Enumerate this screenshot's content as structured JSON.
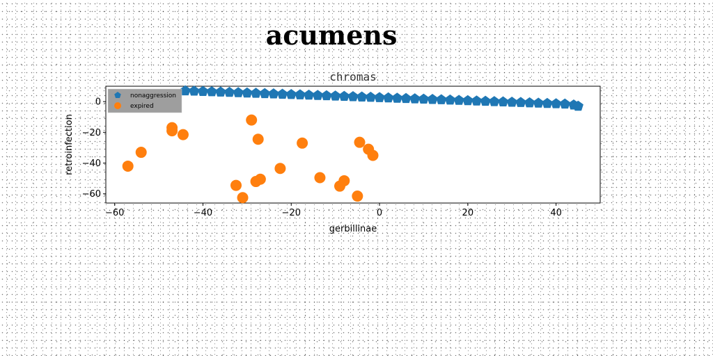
{
  "title": "acumens",
  "chart_data": {
    "type": "scatter",
    "title": "chromas",
    "xlabel": "gerbillinae",
    "ylabel": "retroinfection",
    "xlim": [
      -62,
      50
    ],
    "ylim": [
      -66,
      10
    ],
    "xticks": [
      -60,
      -40,
      -20,
      0,
      20,
      40
    ],
    "yticks": [
      0,
      -20,
      -40,
      -60
    ],
    "grid": false,
    "legend_position": "top-left",
    "series": [
      {
        "name": "nonaggression",
        "marker": "pentagon",
        "color": "#1f77b4",
        "x": [
          -44.0,
          -42.0,
          -40.0,
          -38.0,
          -36.0,
          -34.0,
          -32.0,
          -30.0,
          -28.0,
          -26.0,
          -24.0,
          -22.0,
          -20.0,
          -18.0,
          -16.0,
          -14.0,
          -12.0,
          -10.0,
          -8.0,
          -6.0,
          -4.0,
          -2.0,
          0.0,
          2.0,
          4.0,
          6.0,
          8.0,
          10.0,
          12.0,
          14.0,
          16.0,
          18.0,
          20.0,
          22.0,
          24.0,
          26.0,
          28.0,
          30.0,
          32.0,
          34.0,
          36.0,
          38.0,
          40.0,
          42.0,
          44.0,
          45.0
        ],
        "y": [
          7.0,
          6.8,
          6.6,
          6.4,
          6.2,
          6.0,
          5.8,
          5.6,
          5.4,
          5.2,
          5.0,
          4.8,
          4.6,
          4.4,
          4.2,
          4.0,
          3.8,
          3.6,
          3.4,
          3.2,
          3.0,
          2.8,
          2.6,
          2.4,
          2.2,
          2.0,
          1.8,
          1.6,
          1.4,
          1.2,
          1.0,
          0.8,
          0.6,
          0.4,
          0.2,
          0.0,
          -0.2,
          -0.4,
          -0.6,
          -0.8,
          -1.0,
          -1.2,
          -1.4,
          -1.6,
          -2.2,
          -3.0
        ]
      },
      {
        "name": "expired",
        "marker": "circle",
        "color": "#ff7f0e",
        "x": [
          -57,
          -54,
          -47,
          -47,
          -44.5,
          -29,
          -27.5,
          -32.5,
          -31,
          -28,
          -27,
          -22.5,
          -17.5,
          -13.5,
          -9,
          -8,
          -5,
          -4.5,
          -2.5,
          -1.5
        ],
        "y": [
          -42,
          -33,
          -17,
          -19,
          -21.5,
          -12,
          -24.5,
          -54.5,
          -62.5,
          -52,
          -50.5,
          -43.5,
          -27,
          -49.5,
          -55,
          -51.5,
          -61.5,
          -26.5,
          -31,
          -35
        ]
      }
    ]
  }
}
